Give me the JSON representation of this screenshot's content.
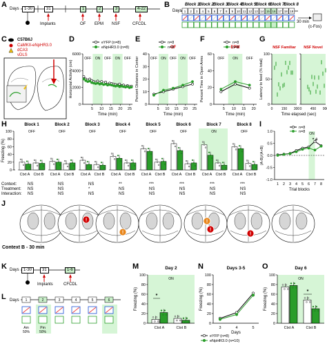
{
  "panel_labels": {
    "A": "A",
    "B": "B",
    "C": "C",
    "D": "D",
    "E": "E",
    "F": "F",
    "G": "G",
    "H": "H",
    "I": "I",
    "J": "J",
    "K": "K",
    "L": "L",
    "M": "M",
    "N": "N",
    "O": "O"
  },
  "panel_a": {
    "days_label": "Days",
    "day_boxes": [
      "1-30",
      "31",
      "1",
      "2",
      "3",
      "4-22"
    ],
    "events": [
      "Implants",
      "OF",
      "EPM",
      "NSF",
      "CFCDL"
    ]
  },
  "panel_b": {
    "days_label": "Days",
    "blocks": [
      "Block 1",
      "Block 2",
      "Block 3",
      "Block 4",
      "Block 5",
      "Block 6",
      "Block 7",
      "Block 8"
    ],
    "day_numbers": [
      "1",
      "2",
      "3",
      "4",
      "5",
      "6",
      "7",
      "8",
      "9",
      "10",
      "11",
      "12",
      "13",
      "14",
      "15",
      "16",
      "17",
      "18",
      "19"
    ],
    "end_note": "30 min",
    "end_label": "(c-Fos)"
  },
  "panel_c": {
    "mouse": "C57B6J",
    "virus": "CaMKII-eNpHR3.0",
    "target1": "dCA3",
    "target2": "vDLS"
  },
  "panel_d": {
    "title": "",
    "ylabel": "Horizontal Activity (cm)",
    "xlabel": "Time (min)",
    "legend": [
      "eYFP (n=8)",
      "eNpHR3.0 (n=8)"
    ],
    "xticks": [
      "5",
      "10",
      "15",
      "20",
      "25"
    ],
    "yticks": [
      "0",
      "2000",
      "4000",
      "6000"
    ],
    "epochs": [
      "OFF",
      "ON",
      "OFF",
      "ON",
      "OFF"
    ]
  },
  "panel_e": {
    "title": "OF",
    "ylabel": "Percent Distance in Center",
    "xlabel": "Time (min)",
    "legend": [
      "n=8",
      "n=8"
    ],
    "xticks": [
      "5",
      "10",
      "15",
      "20",
      "25"
    ],
    "yticks": [
      "0",
      "10",
      "20",
      "30",
      "40"
    ],
    "epochs": [
      "OFF",
      "ON",
      "OFF",
      "ON",
      "OFF"
    ]
  },
  "panel_f": {
    "title": "EPM",
    "ylabel": "Percent Time in Open Arms",
    "xlabel": "Time (min)",
    "legend": [
      "n=8",
      "n=8"
    ],
    "xticks": [
      "5",
      "10",
      "15",
      "20"
    ],
    "yticks": [
      "0",
      "20",
      "40",
      "60"
    ],
    "epochs": [
      "OFF",
      "ON",
      "OFF"
    ]
  },
  "panel_g": {
    "title1": "NSF Familiar",
    "title2": "NSF Novel",
    "ylabel": "Latency to feed (% total)",
    "xlabel": "Time elapsed (sec)",
    "xticks1": [
      "0",
      "150",
      "300"
    ],
    "xticks2": [
      "0",
      "450",
      "900"
    ],
    "yticks": [
      "0",
      "50",
      "100"
    ]
  },
  "panel_h": {
    "ylabel": "Freezing (%)",
    "blocks": [
      "Block 1",
      "Block 2",
      "Block 3",
      "Block 4",
      "Block 5",
      "Block 6",
      "Block 7",
      "Block 8"
    ],
    "light": [
      "OFF",
      "OFF",
      "OFF",
      "OFF",
      "OFF",
      "OFF",
      "ON",
      "OFF"
    ],
    "ctxA": "Ctxt A",
    "ctxB": "Ctxt B",
    "rows": [
      "Context:",
      "Treatment:",
      "Interaction:"
    ],
    "context": [
      "NS",
      "NS",
      "NS",
      "**",
      "***",
      "***",
      "***",
      "***"
    ],
    "treatment": [
      "NS",
      "NS",
      "*",
      "NS",
      "NS",
      "NS",
      "NS",
      "NS"
    ],
    "interaction": [
      "NS",
      "NS",
      "NS",
      "NS",
      "NS",
      "NS",
      "NS",
      "NS"
    ],
    "yticks": [
      "0",
      "20",
      "40",
      "60",
      "80",
      "100"
    ],
    "eyfp_A": [
      20,
      22,
      25,
      35,
      55,
      68,
      65,
      60
    ],
    "eyfp_B": [
      18,
      16,
      14,
      18,
      20,
      16,
      18,
      17
    ],
    "halo_A": [
      15,
      20,
      14,
      30,
      48,
      50,
      38,
      55
    ],
    "halo_B": [
      17,
      18,
      12,
      18,
      22,
      18,
      12,
      14
    ]
  },
  "panel_i": {
    "ylabel": "(A-B)/(A+B)",
    "xlabel": "Trial blocks",
    "legend": [
      "n=8",
      "n=8"
    ],
    "xticks": [
      "1",
      "2",
      "3",
      "4",
      "5",
      "6",
      "7",
      "8"
    ],
    "yticks": [
      "-1.0",
      "-0.5",
      "0.0",
      "0.5",
      "1.0"
    ],
    "annotation": "* #",
    "light": "ON"
  },
  "panel_j": {
    "caption": "Context B - 30 min"
  },
  "panel_k": {
    "days_label": "Days",
    "day_boxes": [
      "1-30",
      "31",
      "1-6"
    ],
    "events": [
      "Implants",
      "CFCDL"
    ]
  },
  "panel_l": {
    "days_label": "Days",
    "day_numbers": [
      "1",
      "2",
      "3",
      "4",
      "5",
      "6"
    ],
    "am": "Am",
    "pm": "Pm",
    "am_pct": "50%",
    "pm_pct": "50%"
  },
  "panel_m": {
    "title": "Day 2",
    "light": "ON",
    "ylabel": "Freezing (%)",
    "xlabels": [
      "Ctxt A",
      "Ctxt B"
    ],
    "yticks": [
      "0",
      "20",
      "40",
      "60",
      "80",
      "100"
    ],
    "star": "*",
    "eyfp": [
      8,
      10
    ],
    "halo": [
      22,
      6
    ]
  },
  "panel_n": {
    "title": "Days 3-5",
    "ylabel": "Freezing (%)",
    "xlabel": "Days",
    "xticks": [
      "3",
      "4",
      "5"
    ],
    "yticks": [
      "0",
      "20",
      "40",
      "60",
      "80",
      "100"
    ],
    "legend": [
      "eYFP (n=8)",
      "eNpHR3.0 (n=10)"
    ]
  },
  "panel_o": {
    "title": "Day 6",
    "light": "ON",
    "ylabel": "Freezing (%)",
    "xlabels": [
      "Ctxt A",
      "Ctxt B"
    ],
    "yticks": [
      "0",
      "20",
      "40",
      "60",
      "80",
      "100"
    ],
    "star": "*",
    "eyfp": [
      75,
      48
    ],
    "halo": [
      78,
      30
    ]
  },
  "colors": {
    "green": "#2a9d2a",
    "light_green": "#d6f5d6",
    "red": "#d00000",
    "orange": "#e8851a"
  }
}
